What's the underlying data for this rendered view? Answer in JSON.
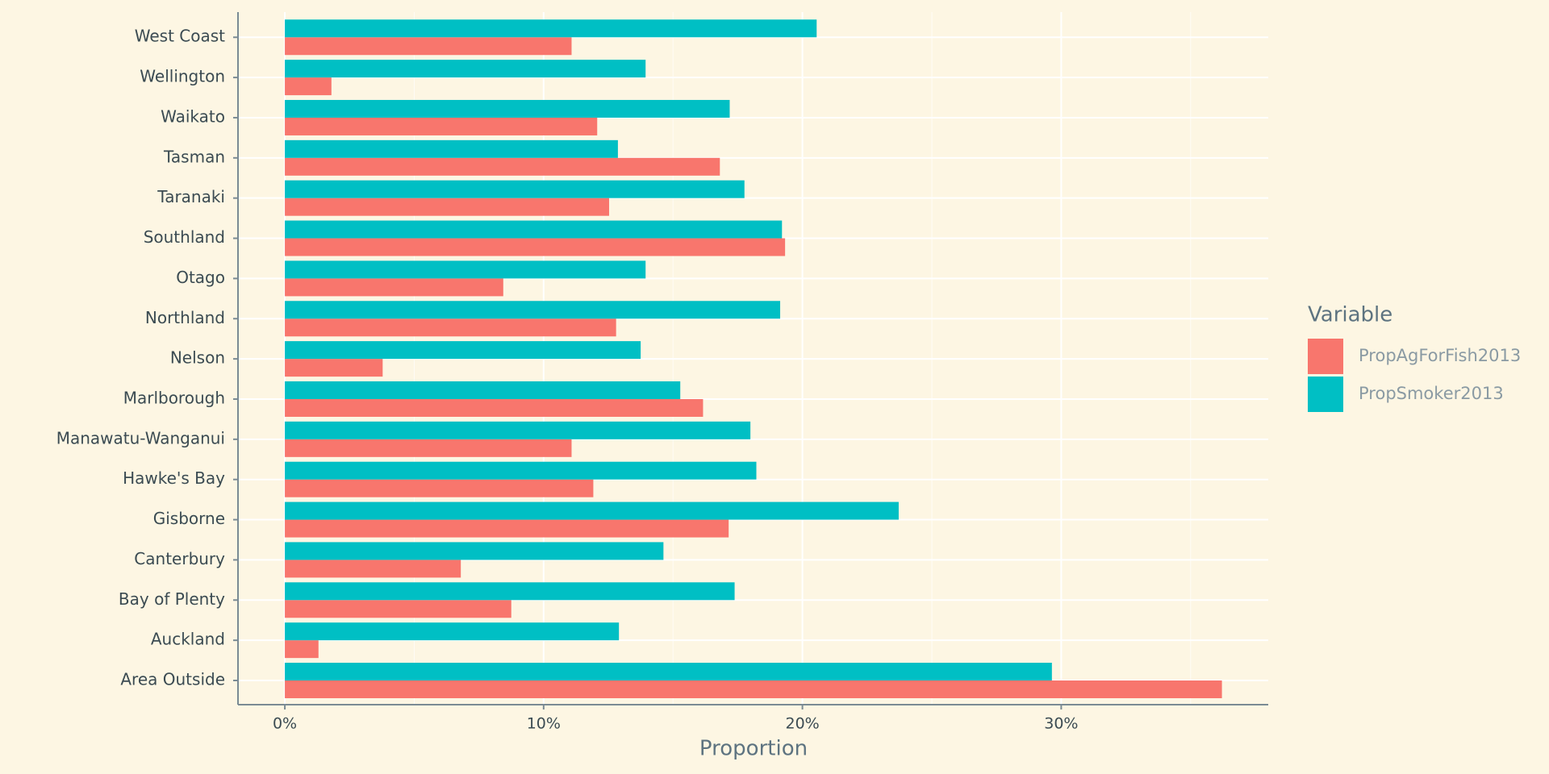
{
  "chart_data": {
    "type": "bar",
    "orientation": "horizontal",
    "x_label": "Proportion",
    "legend_title": "Variable",
    "categories": [
      "Area Outside",
      "Auckland",
      "Bay of Plenty",
      "Canterbury",
      "Gisborne",
      "Hawke's Bay",
      "Manawatu-Wanganui",
      "Marlborough",
      "Nelson",
      "Northland",
      "Otago",
      "Southland",
      "Taranaki",
      "Tasman",
      "Waikato",
      "Wellington",
      "West Coast"
    ],
    "series": [
      {
        "name": "PropAgForFish2013",
        "color": "#f8766d",
        "values": [
          36.21,
          1.3,
          8.75,
          6.8,
          17.15,
          11.92,
          11.08,
          16.16,
          3.78,
          12.8,
          8.44,
          19.33,
          12.53,
          16.81,
          12.07,
          1.8,
          11.08
        ]
      },
      {
        "name": "PropSmoker2013",
        "color": "#00bfc4",
        "values": [
          29.64,
          12.91,
          17.38,
          14.63,
          23.72,
          18.22,
          17.99,
          15.28,
          13.75,
          19.14,
          13.94,
          19.21,
          17.76,
          12.87,
          17.19,
          13.94,
          20.55
        ]
      }
    ],
    "xlim": [
      -1.81,
      38.0
    ],
    "xticks": [
      {
        "value": 0,
        "label": "0%"
      },
      {
        "value": 10,
        "label": "10%"
      },
      {
        "value": 20,
        "label": "20%"
      },
      {
        "value": 30,
        "label": "30%"
      }
    ],
    "xminor": [
      5,
      15,
      25,
      35
    ],
    "grid": true
  }
}
